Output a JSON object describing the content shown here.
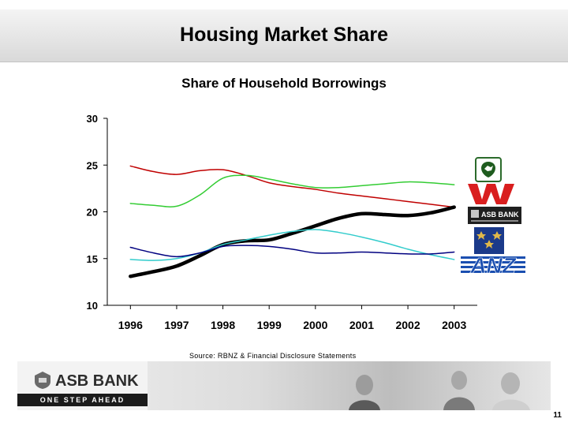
{
  "page": {
    "title": "Housing Market Share",
    "source": "Source: RBNZ & Financial Disclosure Statements",
    "page_number": "11"
  },
  "banner": {
    "brand": "ASB BANK",
    "tagline": "ONE STEP AHEAD"
  },
  "logos": {
    "asb_text": "ASB BANK",
    "anz_text": "ANZ"
  },
  "chart_data": {
    "type": "line",
    "title": "Share of Household Borrowings",
    "xlabel": "",
    "ylabel": "",
    "x": [
      1996,
      1996.5,
      1997,
      1997.5,
      1998,
      1998.5,
      1999,
      1999.5,
      2000,
      2000.5,
      2001,
      2001.5,
      2002,
      2002.5,
      2003
    ],
    "x_tick_labels": [
      "1996",
      "1997",
      "1998",
      "1999",
      "2000",
      "2001",
      "2002",
      "2003"
    ],
    "y_ticks": [
      10,
      15,
      20,
      25,
      30
    ],
    "ylim": [
      10,
      30
    ],
    "xlim": [
      1995.5,
      2003.5
    ],
    "grid": false,
    "legend": "logos-right",
    "series": [
      {
        "color": "#c00000",
        "width": 1.5,
        "values": [
          24.9,
          24.3,
          24.0,
          24.4,
          24.5,
          23.9,
          23.1,
          22.7,
          22.4,
          22.0,
          21.7,
          21.4,
          21.1,
          20.8,
          20.5
        ]
      },
      {
        "color": "#33cc33",
        "width": 1.5,
        "values": [
          20.9,
          20.7,
          20.6,
          21.8,
          23.6,
          23.9,
          23.5,
          23.0,
          22.6,
          22.6,
          22.8,
          23.0,
          23.2,
          23.1,
          22.9
        ]
      },
      {
        "color": "#000000",
        "width": 4.5,
        "values": [
          13.1,
          13.6,
          14.2,
          15.3,
          16.5,
          16.9,
          17.0,
          17.7,
          18.5,
          19.3,
          19.8,
          19.7,
          19.6,
          19.9,
          20.5
        ]
      },
      {
        "color": "#33cccc",
        "width": 1.5,
        "values": [
          14.9,
          14.8,
          15.0,
          15.6,
          16.5,
          17.0,
          17.5,
          17.9,
          18.1,
          17.8,
          17.3,
          16.7,
          16.0,
          15.4,
          14.9
        ]
      },
      {
        "color": "#000080",
        "width": 1.5,
        "values": [
          16.2,
          15.6,
          15.2,
          15.6,
          16.3,
          16.4,
          16.3,
          16.0,
          15.6,
          15.6,
          15.7,
          15.6,
          15.5,
          15.5,
          15.7
        ]
      }
    ]
  }
}
